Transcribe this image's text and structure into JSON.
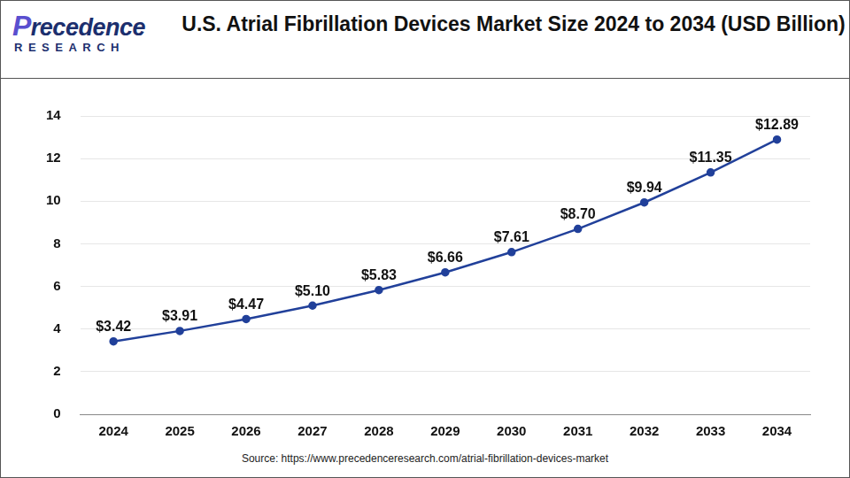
{
  "chart_data": {
    "type": "line",
    "title": "U.S. Atrial Fibrillation Devices Market Size 2024 to 2034 (USD Billion)",
    "logo": {
      "name": "Precedence",
      "tagline": "RESEARCH"
    },
    "source": "Source: https://www.precedenceresearch.com/atrial-fibrillation-devices-market",
    "categories": [
      "2024",
      "2025",
      "2026",
      "2027",
      "2028",
      "2029",
      "2030",
      "2031",
      "2032",
      "2033",
      "2034"
    ],
    "values": [
      3.42,
      3.91,
      4.47,
      5.1,
      5.83,
      6.66,
      7.61,
      8.7,
      9.94,
      11.35,
      12.89
    ],
    "value_labels": [
      "$3.42",
      "$3.91",
      "$4.47",
      "$5.10",
      "$5.83",
      "$6.66",
      "$7.61",
      "$8.70",
      "$9.94",
      "$11.35",
      "$12.89"
    ],
    "color": "#21409a",
    "marker": "circle",
    "ylim": [
      0,
      14
    ],
    "yticks": [
      0,
      2,
      4,
      6,
      8,
      10,
      12,
      14
    ],
    "grid": true,
    "data_labels": true
  }
}
